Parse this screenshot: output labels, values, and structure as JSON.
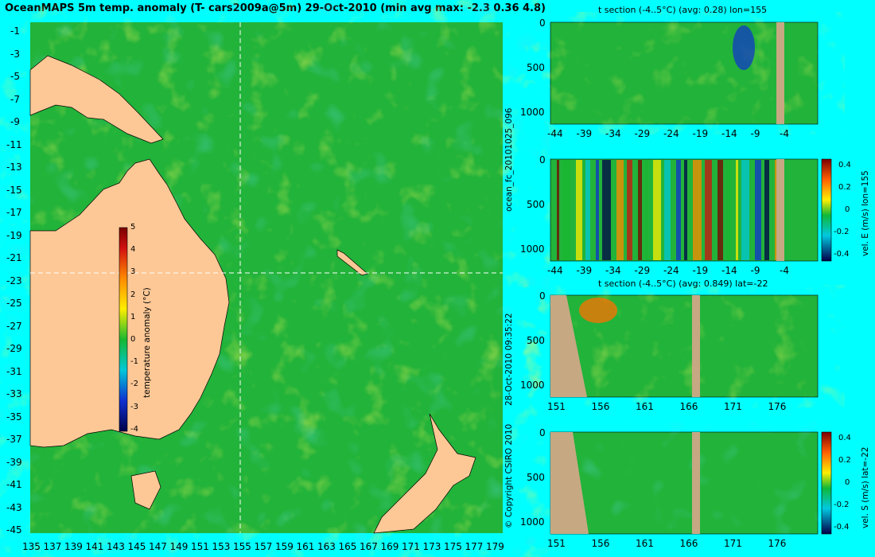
{
  "title": "OceanMAPS 5m temp. anomaly (T- cars2009a@5m) 29-Oct-2010 (min avg max: -2.3 0.36 4.8)",
  "side_labels": {
    "run_id": "ocean_fc_20101025_096",
    "timestamp": "28-Oct-2010 09:35:22",
    "copyright": "© Copyright CSIRO 2010"
  },
  "map": {
    "lon_ticks": [
      "135",
      "137",
      "139",
      "141",
      "143",
      "145",
      "147",
      "149",
      "151",
      "153",
      "155",
      "157",
      "159",
      "161",
      "163",
      "165",
      "167",
      "169",
      "171",
      "173",
      "175",
      "177",
      "179"
    ],
    "lat_ticks": [
      "-1",
      "-3",
      "-5",
      "-7",
      "-9",
      "-11",
      "-13",
      "-15",
      "-17",
      "-19",
      "-21",
      "-23",
      "-25",
      "-27",
      "-29",
      "-31",
      "-33",
      "-35",
      "-37",
      "-39",
      "-41",
      "-43",
      "-45"
    ],
    "colorbar": {
      "label": "temperature anomaly (°C)",
      "ticks": [
        "5",
        "4",
        "3",
        "2",
        "1",
        "0",
        "-1",
        "-2",
        "-3",
        "-4"
      ]
    }
  },
  "panels": [
    {
      "title": "t section (-4..5°C) (avg: 0.28) lon=155",
      "y_ticks": [
        "0",
        "500",
        "1000"
      ],
      "x_ticks": [
        "-44",
        "-39",
        "-34",
        "-29",
        "-24",
        "-19",
        "-14",
        "-9",
        "-4"
      ]
    },
    {
      "title": "",
      "y_ticks": [
        "0",
        "500",
        "1000"
      ],
      "x_ticks": [
        "-44",
        "-39",
        "-34",
        "-29",
        "-24",
        "-19",
        "-14",
        "-9",
        "-4"
      ],
      "colorbar_label": "vel. E (m/s) lon=155",
      "colorbar_ticks": [
        "0.4",
        "0.2",
        "0",
        "-0.2",
        "-0.4"
      ]
    },
    {
      "title": "t section (-4..5°C) (avg: 0.849) lat=-22",
      "y_ticks": [
        "0",
        "500",
        "1000"
      ],
      "x_ticks": [
        "151",
        "156",
        "161",
        "166",
        "171",
        "176"
      ]
    },
    {
      "title": "",
      "y_ticks": [
        "0",
        "500",
        "1000"
      ],
      "x_ticks": [
        "151",
        "156",
        "161",
        "166",
        "171",
        "176"
      ],
      "colorbar_label": "vel. S (m/s) lat=-22",
      "colorbar_ticks": [
        "0.4",
        "0.2",
        "0",
        "-0.2",
        "-0.4"
      ]
    }
  ]
}
